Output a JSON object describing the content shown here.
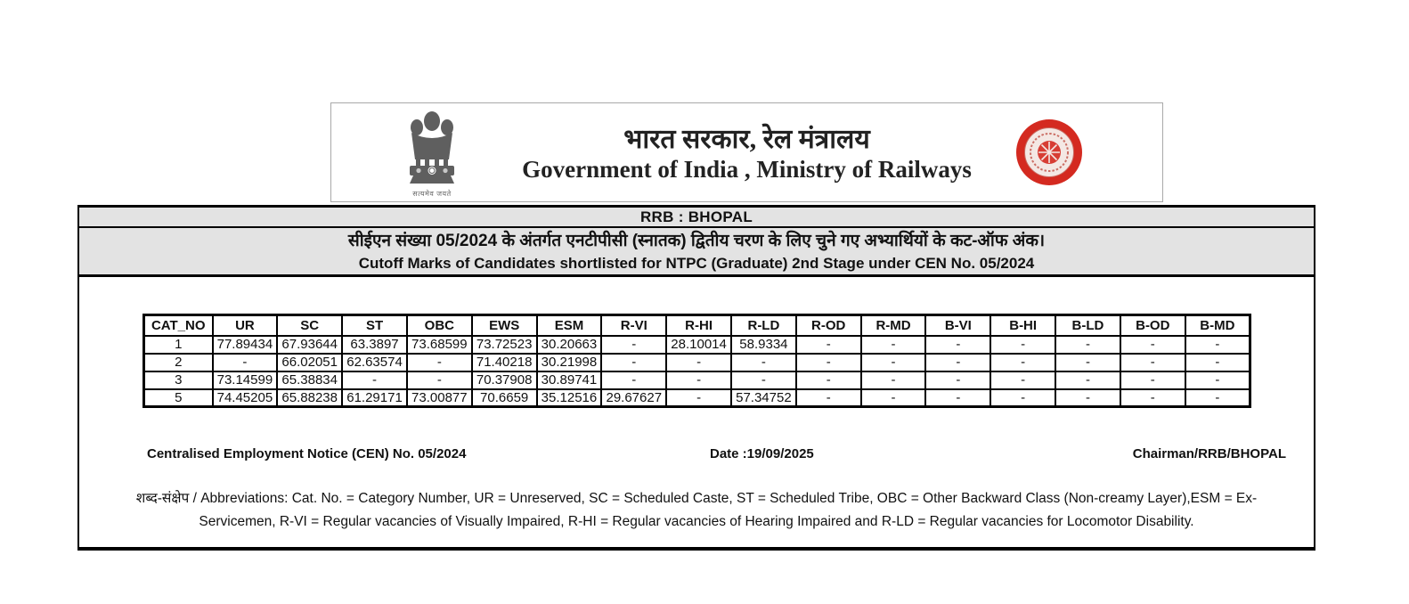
{
  "header": {
    "hindi_title": "भारत सरकार, रेल मंत्रालय",
    "english_title": "Government of India , Ministry of Railways",
    "emblem_caption": "सत्यमेव जयते"
  },
  "banner": {
    "board": "RRB : BHOPAL",
    "subtitle_hindi": "सीईएन संख्या 05/2024 के अंतर्गत एनटीपीसी (स्नातक) द्वितीय चरण के लिए चुने गए अभ्यार्थियों के कट-ऑफ अंक।",
    "subtitle_english": "Cutoff Marks of Candidates shortlisted for NTPC (Graduate) 2nd Stage under CEN No. 05/2024"
  },
  "table": {
    "columns": [
      "CAT_NO",
      "UR",
      "SC",
      "ST",
      "OBC",
      "EWS",
      "ESM",
      "R-VI",
      "R-HI",
      "R-LD",
      "R-OD",
      "R-MD",
      "B-VI",
      "B-HI",
      "B-LD",
      "B-OD",
      "B-MD"
    ],
    "rows": [
      [
        "1",
        "77.89434",
        "67.93644",
        "63.3897",
        "73.68599",
        "73.72523",
        "30.20663",
        "-",
        "28.10014",
        "58.9334",
        "-",
        "-",
        "-",
        "-",
        "-",
        "-",
        "-"
      ],
      [
        "2",
        "-",
        "66.02051",
        "62.63574",
        "-",
        "71.40218",
        "30.21998",
        "-",
        "-",
        "-",
        "-",
        "-",
        "-",
        "-",
        "-",
        "-",
        "-"
      ],
      [
        "3",
        "73.14599",
        "65.38834",
        "-",
        "-",
        "70.37908",
        "30.89741",
        "-",
        "-",
        "-",
        "-",
        "-",
        "-",
        "-",
        "-",
        "-",
        "-"
      ],
      [
        "5",
        "74.45205",
        "65.88238",
        "61.29171",
        "73.00877",
        "70.6659",
        "35.12516",
        "29.67627",
        "-",
        "57.34752",
        "-",
        "-",
        "-",
        "-",
        "-",
        "-",
        "-"
      ]
    ]
  },
  "footer": {
    "cen": "Centralised Employment Notice (CEN) No. 05/2024",
    "date": "Date :19/09/2025",
    "chairman": "Chairman/RRB/BHOPAL"
  },
  "abbreviations": {
    "line1": "शब्द-संक्षेप / Abbreviations: Cat. No. = Category Number, UR = Unreserved, SC = Scheduled Caste, ST = Scheduled Tribe, OBC = Other Backward Class (Non-creamy Layer),ESM = Ex-",
    "line2": "Servicemen, R-VI = Regular vacancies of Visually Impaired, R-HI = Regular vacancies of Hearing Impaired and R-LD = Regular vacancies for Locomotor Disability."
  },
  "colors": {
    "band_bg": "#e3e3e3",
    "logo_red": "#d42a20",
    "emblem_gray": "#5f5f5f",
    "border": "#000000"
  }
}
